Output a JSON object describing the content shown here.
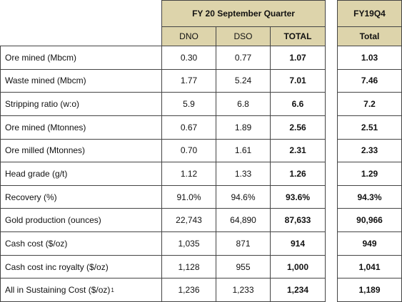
{
  "header": {
    "group": "FY 20 September Quarter",
    "columns": [
      "DNO",
      "DSO",
      "TOTAL"
    ],
    "prior_group": "FY19Q4",
    "prior_column": "Total"
  },
  "table": {
    "footnote_marker": "1",
    "rows": [
      [
        "Ore mined (Mbcm)",
        "0.30",
        "0.77",
        "1.07",
        "1.03"
      ],
      [
        "Waste mined (Mbcm)",
        "1.77",
        "5.24",
        "7.01",
        "7.46"
      ],
      [
        "Stripping ratio (w:o)",
        "5.9",
        "6.8",
        "6.6",
        "7.2"
      ],
      [
        "Ore mined (Mtonnes)",
        "0.67",
        "1.89",
        "2.56",
        "2.51"
      ],
      [
        "Ore milled (Mtonnes)",
        "0.70",
        "1.61",
        "2.31",
        "2.33"
      ],
      [
        "Head grade (g/t)",
        "1.12",
        "1.33",
        "1.26",
        "1.29"
      ],
      [
        "Recovery (%)",
        "91.0%",
        "94.6%",
        "93.6%",
        "94.3%"
      ],
      [
        "Gold production (ounces)",
        "22,743",
        "64,890",
        "87,633",
        "90,966"
      ],
      [
        "Cash cost ($/oz)",
        "1,035",
        "871",
        "914",
        "949"
      ],
      [
        "Cash cost inc royalty ($/oz)",
        "1,128",
        "955",
        "1,000",
        "1,041"
      ],
      [
        "All in Sustaining Cost ($/oz)",
        "1,236",
        "1,233",
        "1,234",
        "1,189"
      ]
    ]
  }
}
